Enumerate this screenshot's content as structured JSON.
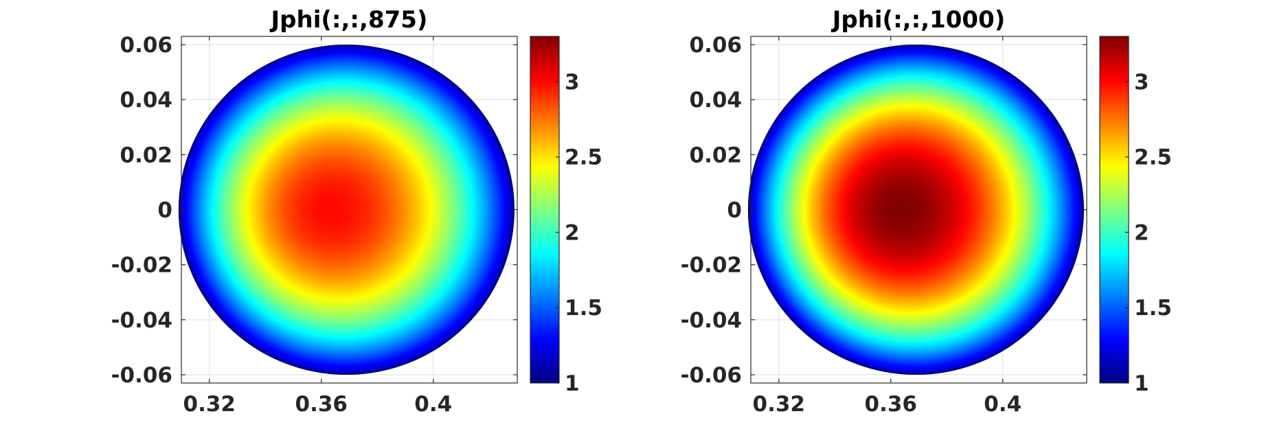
{
  "chart_data": [
    {
      "type": "heatmap",
      "title": "Jphi(:,:,875)",
      "xlabel": "",
      "ylabel": "",
      "xlim": [
        0.31,
        0.43
      ],
      "ylim": [
        -0.063,
        0.063
      ],
      "xticks": [
        0.32,
        0.36,
        0.4
      ],
      "xtick_labels": [
        "0.32",
        "0.36",
        "0.4"
      ],
      "yticks": [
        0.06,
        0.04,
        0.02,
        0,
        -0.02,
        -0.04,
        -0.06
      ],
      "ytick_labels": [
        "0.06",
        "0.04",
        "0.02",
        "0",
        "-0.02",
        "-0.04",
        "-0.06"
      ],
      "grid": true,
      "colormap": "jet",
      "clim": [
        1,
        3.3
      ],
      "colorbar_ticks": [
        3,
        2.5,
        2,
        1.5,
        1
      ],
      "colorbar_tick_labels": [
        "3",
        "2.5",
        "2",
        "1.5",
        "1"
      ],
      "domain": {
        "shape": "circle",
        "center_x": 0.369,
        "center_y": 0.0,
        "radius": 0.06
      },
      "peak": {
        "x": 0.363,
        "y": 0.0,
        "value": 3.0
      },
      "edge_value": 1.1
    },
    {
      "type": "heatmap",
      "title": "Jphi(:,:,1000)",
      "xlabel": "",
      "ylabel": "",
      "xlim": [
        0.31,
        0.43
      ],
      "ylim": [
        -0.063,
        0.063
      ],
      "xticks": [
        0.32,
        0.36,
        0.4
      ],
      "xtick_labels": [
        "0.32",
        "0.36",
        "0.4"
      ],
      "yticks": [
        0.06,
        0.04,
        0.02,
        0,
        -0.02,
        -0.04,
        -0.06
      ],
      "ytick_labels": [
        "0.06",
        "0.04",
        "0.02",
        "0",
        "-0.02",
        "-0.04",
        "-0.06"
      ],
      "grid": true,
      "colormap": "jet",
      "clim": [
        1,
        3.3
      ],
      "colorbar_ticks": [
        3,
        2.5,
        2,
        1.5,
        1
      ],
      "colorbar_tick_labels": [
        "3",
        "2.5",
        "2",
        "1.5",
        "1"
      ],
      "domain": {
        "shape": "circle",
        "center_x": 0.369,
        "center_y": 0.0,
        "radius": 0.06
      },
      "peak": {
        "x": 0.363,
        "y": 0.0,
        "value": 3.3
      },
      "edge_value": 1.1
    }
  ]
}
